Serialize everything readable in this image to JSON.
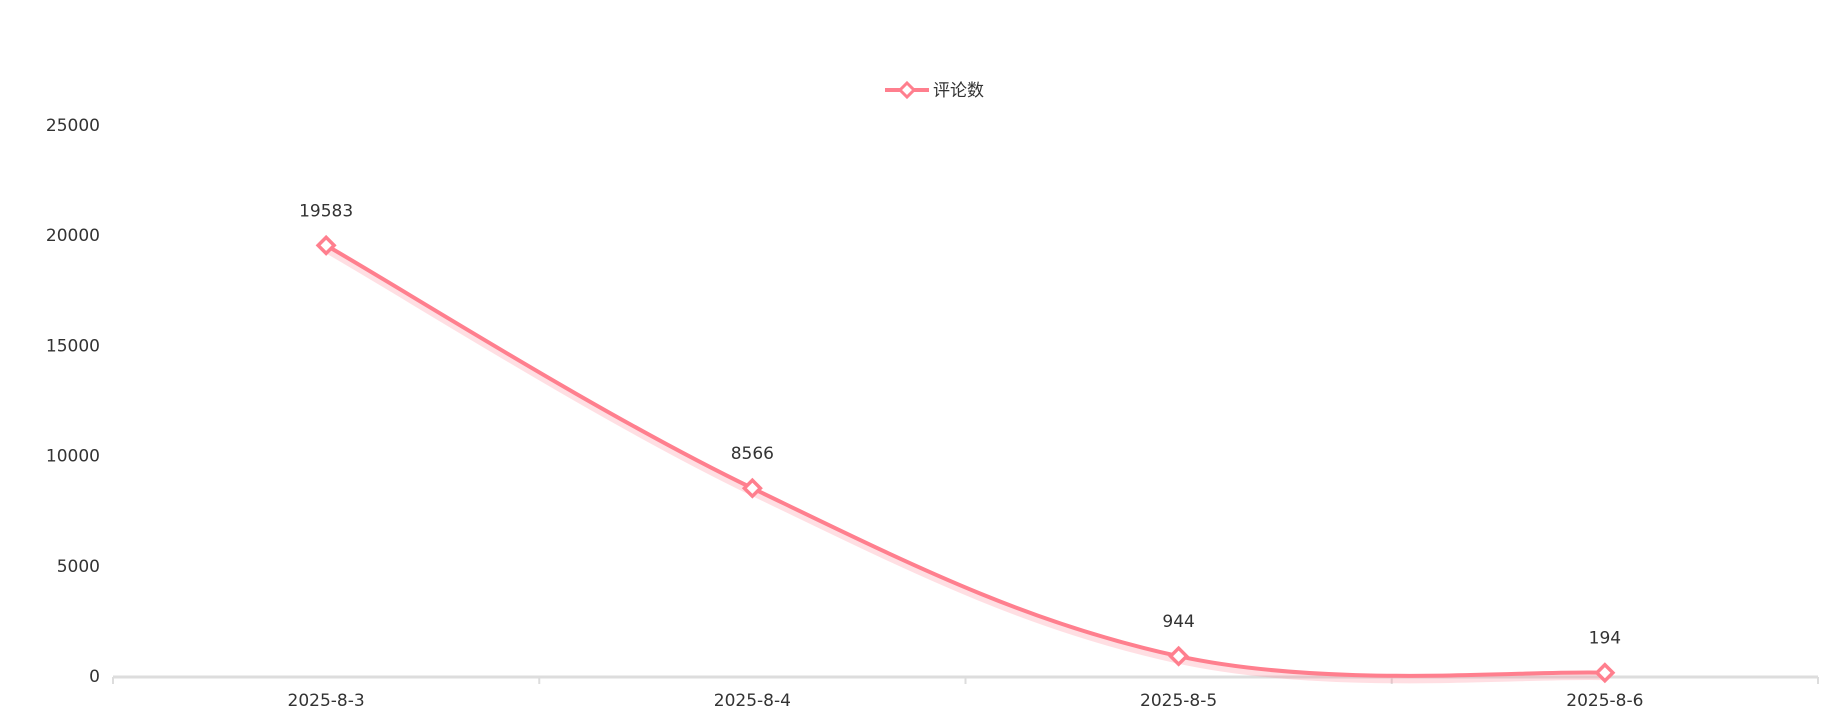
{
  "chart_data": {
    "type": "line",
    "smooth": true,
    "grid": false,
    "legend": "top",
    "categories": [
      "2025-8-3",
      "2025-8-4",
      "2025-8-5",
      "2025-8-6"
    ],
    "series": [
      {
        "name": "评论数",
        "color": "#ff7f8e",
        "values": [
          19583,
          8566,
          944,
          194
        ]
      }
    ],
    "ylim": [
      0,
      25000
    ],
    "yticks": [
      0,
      5000,
      10000,
      15000,
      20000,
      25000
    ]
  }
}
